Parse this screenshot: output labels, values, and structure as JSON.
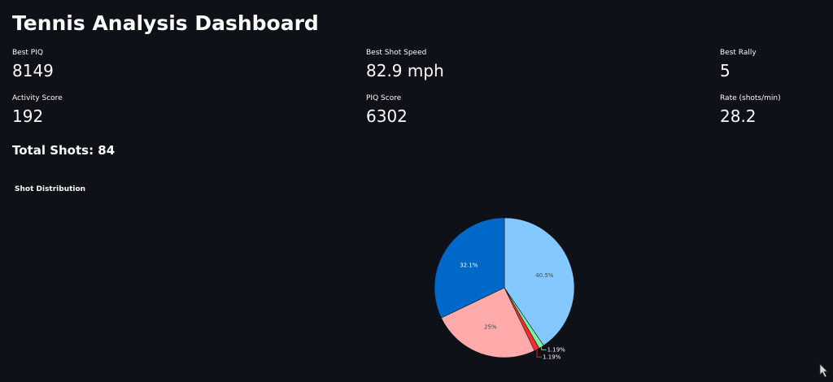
{
  "header": {
    "title": "Tennis Analysis Dashboard"
  },
  "metrics": [
    {
      "label": "Best PIQ",
      "value": "8149"
    },
    {
      "label": "Best Shot Speed",
      "value": "82.9 mph"
    },
    {
      "label": "Best Rally",
      "value": "5"
    },
    {
      "label": "Activity Score",
      "value": "192"
    },
    {
      "label": "PIQ Score",
      "value": "6302"
    },
    {
      "label": "Rate (shots/min)",
      "value": "28.2"
    }
  ],
  "total_shots": "Total Shots: 84",
  "chart_data": {
    "type": "pie",
    "title": "Shot Distribution",
    "values": [
      40.5,
      1.19,
      1.19,
      25,
      32.1
    ],
    "value_labels": [
      "40.5%",
      "1.19%",
      "1.19%",
      "25%",
      "32.1%"
    ],
    "colors": [
      "#83c9ff",
      "#7defa1",
      "#ff2b2b",
      "#ffabab",
      "#0068c9"
    ]
  }
}
